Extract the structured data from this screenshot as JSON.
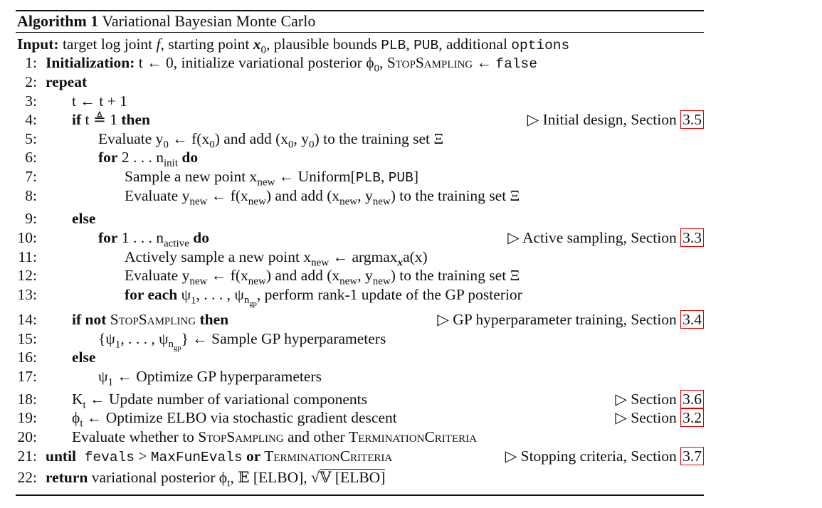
{
  "algorithm": {
    "label": "Algorithm 1",
    "title": "Variational Bayesian Monte Carlo"
  },
  "input": {
    "keyword": "Input:",
    "text_a": "target log joint ",
    "f": "f",
    "text_b": ", starting point ",
    "x0": "x",
    "x0_sub": "0",
    "text_c": ", plausible bounds ",
    "plb": "PLB",
    "comma": ", ",
    "pub": "PUB",
    "text_d": ", additional ",
    "options": "options"
  },
  "lines": [
    {
      "num": "1:",
      "kw": "Initialization:",
      "text": " t ← 0, initialize variational posterior ϕ",
      "sub": "0",
      "text2": ", ",
      "sc": "StopSampling",
      "text3": " ← ",
      "tt": "false"
    },
    {
      "num": "2:",
      "kw": "repeat"
    },
    {
      "num": "3:",
      "text": "t ← t + 1"
    },
    {
      "num": "4:",
      "kw": "if",
      "text": " t ≜ 1 ",
      "kw2": "then",
      "comment": "▷ Initial design, Section ",
      "ref": "3.5"
    },
    {
      "num": "5:",
      "text": "Evaluate y",
      "sub": "0",
      "text2": " ← f(x",
      "sub2": "0",
      "text3": ") and add (x",
      "sub3": "0",
      "text4": ", y",
      "sub4": "0",
      "text5": ") to the training set Ξ"
    },
    {
      "num": "6:",
      "kw": "for",
      "text": " 2 . . . n",
      "sub": "init",
      "kw2": " do"
    },
    {
      "num": "7:",
      "text": "Sample a new point x",
      "sub": "new",
      "text2": " ← Uniform[",
      "tt1": "PLB",
      "text3": ", ",
      "tt2": "PUB",
      "text4": "]"
    },
    {
      "num": "8:",
      "text": "Evaluate y",
      "sub": "new",
      "text2": " ← f(x",
      "sub2": "new",
      "text3": ") and add (x",
      "sub3": "new",
      "text4": ", y",
      "sub4": "new",
      "text5": ") to the training set Ξ"
    },
    {
      "num": "9:",
      "kw": "else"
    },
    {
      "num": "10:",
      "kw": "for",
      "text": " 1 . . . n",
      "sub": "active",
      "kw2": " do",
      "comment": "▷ Active sampling, Section ",
      "ref": "3.3"
    },
    {
      "num": "11:",
      "text": "Actively sample a new point x",
      "sub": "new",
      "text2": " ← argmax",
      "sub2": "x",
      "text3": "a(x)"
    },
    {
      "num": "12:",
      "text": "Evaluate y",
      "sub": "new",
      "text2": " ← f(x",
      "sub2": "new",
      "text3": ") and add (x",
      "sub3": "new",
      "text4": ", y",
      "sub4": "new",
      "text5": ") to the training set Ξ"
    },
    {
      "num": "13:",
      "kw": "for each",
      "text": " ψ",
      "sub": "1",
      "text2": ", . . . , ψ",
      "sub2": "n_gp",
      "text3": ", perform rank-1 update of the GP posterior"
    },
    {
      "num": "14:",
      "kw": "if not",
      "sc": " StopSampling",
      "kw2": " then",
      "comment": "▷ GP hyperparameter training, Section ",
      "ref": "3.4"
    },
    {
      "num": "15:",
      "text": "{ψ",
      "sub": "1",
      "text2": ", . . . , ψ",
      "sub2": "n_gp",
      "text3": "} ← Sample GP hyperparameters"
    },
    {
      "num": "16:",
      "kw": "else"
    },
    {
      "num": "17:",
      "text": "ψ",
      "sub": "1",
      "text2": " ← Optimize GP hyperparameters"
    },
    {
      "num": "18:",
      "text": "K",
      "sub": "t",
      "text2": " ← Update number of variational components",
      "comment": "▷ Section ",
      "ref": "3.6"
    },
    {
      "num": "19:",
      "text": "ϕ",
      "sub": "t",
      "text2": " ← Optimize ELBO via stochastic gradient descent",
      "comment": "▷ Section ",
      "ref": "3.2"
    },
    {
      "num": "20:",
      "text": "Evaluate whether to ",
      "sc": "StopSampling",
      "text2": " and other ",
      "sc2": "TerminationCriteria"
    },
    {
      "num": "21:",
      "kw": "until",
      "tt1": " fevals",
      "text": " > ",
      "tt2": "MaxFunEvals",
      "kw2": " or ",
      "sc": "TerminationCriteria",
      "comment": "▷ Stopping criteria, Section ",
      "ref": "3.7"
    },
    {
      "num": "22:",
      "kw": "return",
      "text": " variational posterior ϕ",
      "sub": "t",
      "text2": ", 𝔼 [ELBO], √",
      "sqrt": "𝕍 [ELBO]"
    }
  ]
}
